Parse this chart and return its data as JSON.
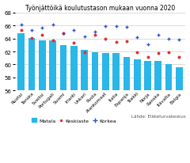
{
  "title": "Työnjättöikä koulutustason mukaan vuonna 2020",
  "categories": [
    "Ruotsi",
    "Tanska",
    "Sveitsi",
    "Portugali",
    "Suomi",
    "Irlanti",
    "Unkari",
    "Puola",
    "Alankomaat",
    "Italia",
    "Espanja",
    "Tsekki",
    "Norja",
    "Ranska",
    "Itävalta",
    "Belgia"
  ],
  "matala": [
    64.8,
    64.1,
    63.7,
    63.7,
    63.0,
    62.9,
    62.2,
    61.9,
    61.8,
    61.8,
    61.1,
    60.8,
    60.5,
    60.5,
    60.1,
    59.6
  ],
  "keskiaste": [
    65.3,
    64.1,
    64.6,
    63.7,
    64.8,
    63.4,
    61.9,
    64.6,
    64.0,
    63.5,
    63.6,
    61.9,
    61.1,
    61.8,
    61.9,
    61.1
  ],
  "korkea": [
    66.1,
    65.3,
    65.7,
    66.1,
    64.8,
    65.3,
    64.3,
    65.1,
    65.9,
    65.9,
    65.8,
    64.2,
    63.1,
    64.5,
    64.0,
    63.8
  ],
  "bar_color": "#29b6e8",
  "keskiaste_color": "#e03030",
  "korkea_color": "#3050cc",
  "ybase": 56,
  "ylim": [
    56,
    68
  ],
  "yticks": [
    56,
    58,
    60,
    62,
    64,
    66,
    68
  ],
  "source": "Lähde: Eläketurvakeskus"
}
